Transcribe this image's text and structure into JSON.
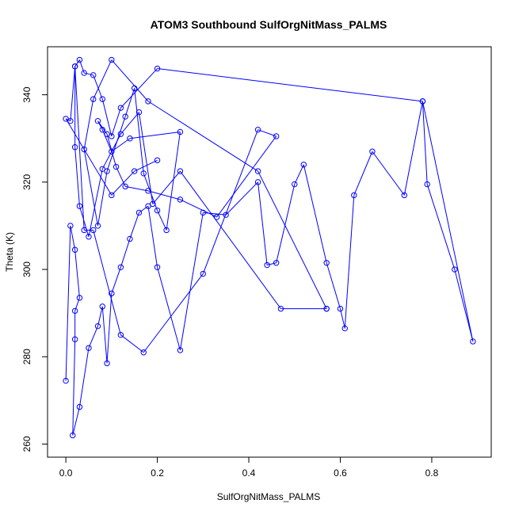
{
  "chart_data": {
    "type": "line",
    "title": "ATOM3 Southbound SulfOrgNitMass_PALMS",
    "xlabel": "SulfOrgNitMass_PALMS",
    "ylabel": "Theta (K)",
    "xlim": [
      -0.04,
      0.93
    ],
    "ylim": [
      257,
      351
    ],
    "x_ticks": [
      0.0,
      0.2,
      0.4,
      0.6,
      0.8
    ],
    "x_tick_labels": [
      "0.0",
      "0.2",
      "0.4",
      "0.6",
      "0.8"
    ],
    "y_ticks": [
      260,
      280,
      300,
      320,
      340
    ],
    "y_tick_labels": [
      "260",
      "280",
      "300",
      "320",
      "340"
    ],
    "markers": "open-circle",
    "grid": false,
    "color": "#0000ff",
    "series": [
      {
        "x": [
          0.0,
          0.01,
          0.02,
          0.03,
          0.02,
          0.02,
          0.015,
          0.03,
          0.05,
          0.07,
          0.08,
          0.09,
          0.1,
          0.12,
          0.14,
          0.16,
          0.18,
          0.2,
          0.25,
          0.3,
          0.35,
          0.42,
          0.44,
          0.46,
          0.5,
          0.52,
          0.57,
          0.6,
          0.61,
          0.63,
          0.67,
          0.74,
          0.78,
          0.79,
          0.85,
          0.89,
          0.78,
          0.2,
          0.12,
          0.1,
          0.08,
          0.06,
          0.04,
          0.03,
          0.02,
          0.02,
          0.03,
          0.05,
          0.08,
          0.12,
          0.16,
          0.19,
          0.25,
          0.47,
          0.57,
          0.57,
          0.42,
          0.18,
          0.1,
          0.06,
          0.04,
          0.07,
          0.09,
          0.13,
          0.15,
          0.17,
          0.2,
          0.22,
          0.25,
          0.14,
          0.1,
          0.08,
          0.07,
          0.09,
          0.11,
          0.13,
          0.18,
          0.25,
          0.33,
          0.46,
          0.42,
          0.3,
          0.17,
          0.12,
          0.06,
          0.04,
          0.02,
          0.01,
          0.0,
          0.1,
          0.15,
          0.2
        ],
        "y": [
          274.5,
          310,
          304.5,
          293.5,
          290.5,
          284,
          262,
          268.5,
          282,
          287,
          291.5,
          278.5,
          294.5,
          300.5,
          307,
          313,
          314.5,
          300.5,
          281.5,
          313,
          312.5,
          320,
          301,
          301.5,
          319.5,
          324,
          301.5,
          291,
          286.5,
          317,
          327,
          317,
          338.5,
          319.5,
          300,
          283.5,
          338.5,
          346,
          337,
          330.5,
          339,
          344.5,
          345,
          348,
          346.5,
          328,
          314.5,
          307.5,
          323,
          331,
          336,
          315,
          322.5,
          291,
          291,
          291,
          322.5,
          338.5,
          348,
          339,
          327.5,
          310,
          322.5,
          335,
          341.5,
          322,
          313.5,
          309,
          331.5,
          330,
          327,
          332,
          334,
          331,
          323.5,
          319,
          318,
          316,
          312,
          330.5,
          332,
          299,
          281,
          285,
          309,
          309,
          346.5,
          334,
          334.5,
          317,
          322.5,
          325
        ]
      }
    ]
  }
}
